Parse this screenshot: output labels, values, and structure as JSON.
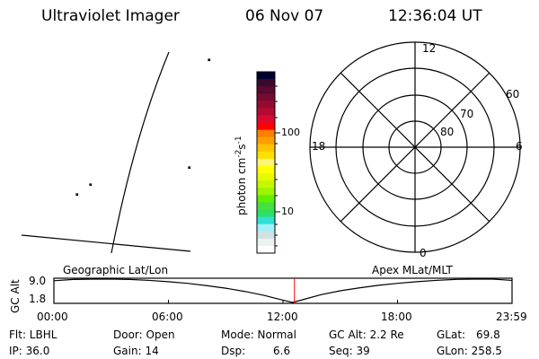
{
  "header": {
    "instrument": "Ultraviolet Imager",
    "date": "06 Nov 07",
    "time": "12:36:04 UT"
  },
  "colorbar": {
    "label": "photon cm",
    "label_exp1": "-2",
    "label_s": "s",
    "label_exp2": "-1",
    "tick_labels": [
      "100",
      "10"
    ],
    "colors": [
      "#000030",
      "#3a0a2c",
      "#580a30",
      "#780a30",
      "#960a32",
      "#b40a32",
      "#d80a30",
      "#ff0000",
      "#ff7f00",
      "#ffa000",
      "#ffc400",
      "#ffe000",
      "#fff47a",
      "#ffff00",
      "#e6fa00",
      "#c4f800",
      "#9cf400",
      "#5ef000",
      "#46e040",
      "#2ee064",
      "#2ee0d6",
      "#a0f0f8",
      "#d0e2e2",
      "#eaf4ee",
      "#ffffff"
    ]
  },
  "polar": {
    "mlt_labels": {
      "top": "12",
      "left": "18",
      "right": "6",
      "bottom": "0"
    },
    "lat_labels": [
      "60",
      "70",
      "80"
    ]
  },
  "labels": {
    "geographic": "Geographic Lat/Lon",
    "apex": "Apex MLat/MLT"
  },
  "chart_data": {
    "type": "line",
    "ylabel": "GC Alt",
    "ytick_labels": [
      "9.0",
      "1.8"
    ],
    "ylim": [
      1.8,
      9.0
    ],
    "xtick_labels": [
      "00:00",
      "06:00",
      "12:00",
      "18:00",
      "23:59"
    ],
    "x_hours": [
      0,
      1,
      2,
      3,
      4,
      5,
      6,
      7,
      8,
      9,
      10,
      11,
      12,
      12.5,
      13,
      14,
      15,
      16,
      17,
      18,
      19,
      20,
      21,
      22,
      23,
      24
    ],
    "values": [
      8.5,
      8.9,
      9.0,
      9.0,
      8.9,
      8.6,
      8.2,
      7.7,
      7.0,
      6.2,
      5.2,
      4.0,
      2.5,
      1.8,
      2.6,
      4.2,
      5.4,
      6.3,
      7.1,
      7.7,
      8.2,
      8.6,
      8.9,
      9.0,
      9.0,
      8.6
    ],
    "current_time_hours": 12.6,
    "current_time_color": "#ff0000"
  },
  "status": {
    "flt": "Flt: LBHL",
    "ip": "IP: 36.0",
    "door": "Door: Open",
    "gain": "Gain: 14",
    "mode": "Mode: Normal",
    "dsp_label": "Dsp:",
    "dsp_value": "6.6",
    "gcalt": "GC Alt: 2.2 Re",
    "seq": "Seq: 39",
    "glat_label": "GLat:",
    "glat_value": "69.8",
    "glon": "GLon: 258.5"
  }
}
